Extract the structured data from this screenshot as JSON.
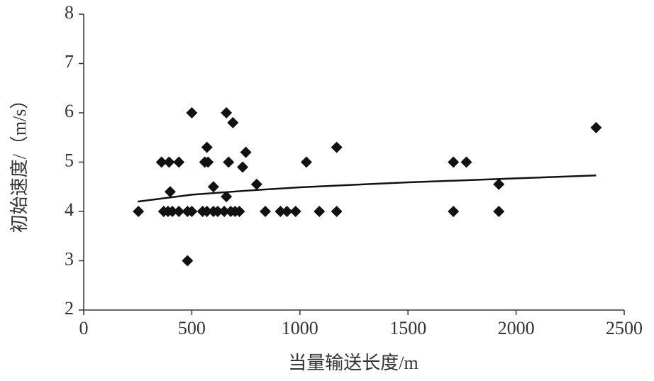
{
  "chart_data": {
    "type": "scatter",
    "x_label": "当量输送长度/m",
    "y_label": "初始速度/（m/s）",
    "xlim": [
      0,
      2500
    ],
    "xticks": [
      0,
      500,
      1000,
      1500,
      2000,
      2500
    ],
    "ylim": [
      2,
      8
    ],
    "yticks": [
      2,
      3,
      4,
      5,
      6,
      7,
      8
    ],
    "grid": false,
    "color": "#111111",
    "x": [
      253,
      370,
      390,
      410,
      440,
      480,
      500,
      550,
      570,
      600,
      620,
      650,
      680,
      700,
      720,
      840,
      910,
      940,
      980,
      1090,
      1170,
      1710,
      1920,
      360,
      395,
      440,
      560,
      575,
      670,
      1030,
      1710,
      1770,
      480,
      500,
      660,
      690,
      570,
      750,
      735,
      400,
      600,
      660,
      800,
      1170,
      1920,
      2370
    ],
    "values": [
      4,
      4,
      4,
      4,
      4,
      4,
      4,
      4,
      4,
      4,
      4,
      4,
      4,
      4,
      4,
      4,
      4,
      4,
      4,
      4,
      4,
      4,
      4,
      5,
      5,
      5,
      5,
      5,
      5,
      5,
      5,
      5,
      3,
      6,
      6,
      5.8,
      5.3,
      5.2,
      4.9,
      4.4,
      4.5,
      4.3,
      4.55,
      5.3,
      4.55,
      5.7
    ],
    "trendline": {
      "x": [
        250,
        500,
        750,
        1000,
        1500,
        2000,
        2370
      ],
      "values": [
        4.2,
        4.34,
        4.42,
        4.49,
        4.59,
        4.67,
        4.73
      ]
    }
  }
}
